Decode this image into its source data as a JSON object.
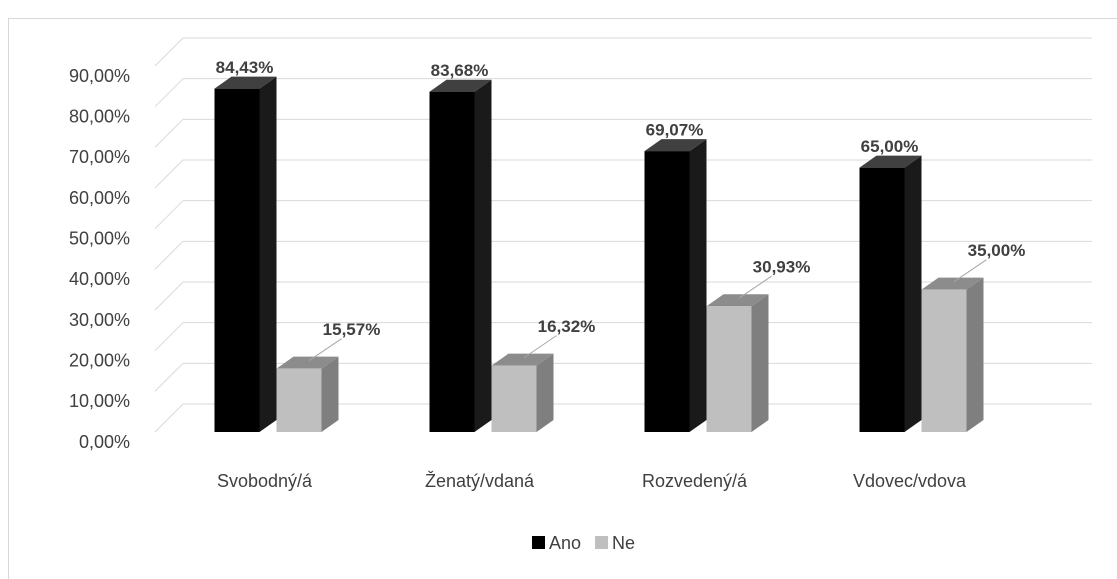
{
  "chart_data": {
    "type": "bar3d",
    "categories": [
      "Svobodný/á",
      "Ženatý/vdaná",
      "Rozvedený/á",
      "Vdovec/vdova"
    ],
    "series": [
      {
        "name": "Ano",
        "color": "#000000",
        "values": [
          84.43,
          83.68,
          69.07,
          65.0
        ],
        "value_labels": [
          "84,43%",
          "83,68%",
          "69,07%",
          "65,00%"
        ]
      },
      {
        "name": "Ne",
        "color": "#bfbfbf",
        "values": [
          15.57,
          16.32,
          30.93,
          35.0
        ],
        "value_labels": [
          "15,57%",
          "16,32%",
          "30,93%",
          "35,00%"
        ]
      }
    ],
    "ylim": [
      0,
      90
    ],
    "yticks": [
      {
        "value": 0,
        "label": "0,00%"
      },
      {
        "value": 10,
        "label": "10,00%"
      },
      {
        "value": 20,
        "label": "20,00%"
      },
      {
        "value": 30,
        "label": "30,00%"
      },
      {
        "value": 40,
        "label": "40,00%"
      },
      {
        "value": 50,
        "label": "50,00%"
      },
      {
        "value": 60,
        "label": "60,00%"
      },
      {
        "value": 70,
        "label": "70,00%"
      },
      {
        "value": 80,
        "label": "80,00%"
      },
      {
        "value": 90,
        "label": "90,00%"
      }
    ],
    "grid": true,
    "legend": "bottom"
  }
}
